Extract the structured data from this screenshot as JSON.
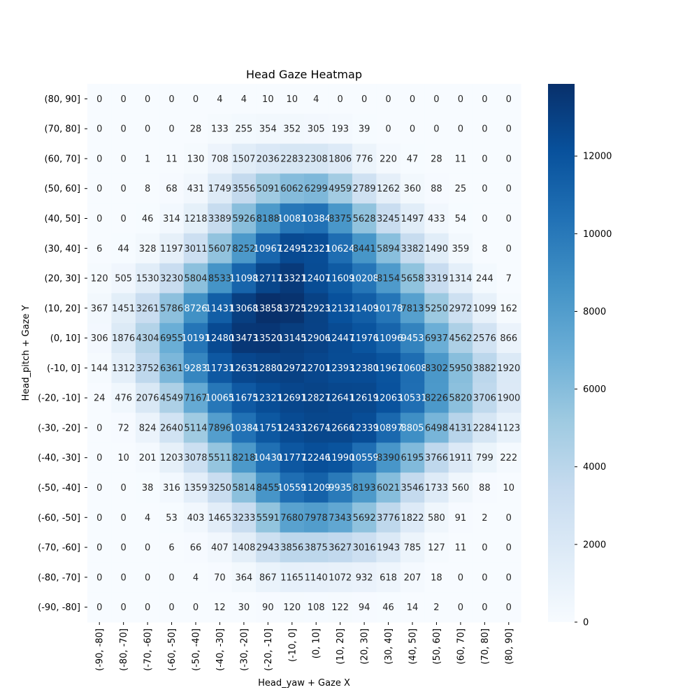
{
  "chart_data": {
    "type": "heatmap",
    "title": "Head Gaze Heatmap",
    "xlabel": "Head_yaw + Gaze X",
    "ylabel": "Head_pitch + Gaze Y",
    "x_categories": [
      "(-90, -80]",
      "(-80, -70]",
      "(-70, -60]",
      "(-60, -50]",
      "(-50, -40]",
      "(-40, -30]",
      "(-30, -20]",
      "(-20, -10]",
      "(-10, 0]",
      "(0, 10]",
      "(10, 20]",
      "(20, 30]",
      "(30, 40]",
      "(40, 50]",
      "(50, 60]",
      "(60, 70]",
      "(70, 80]",
      "(80, 90]"
    ],
    "y_categories": [
      "(80, 90]",
      "(70, 80]",
      "(60, 70]",
      "(50, 60]",
      "(40, 50]",
      "(30, 40]",
      "(20, 30]",
      "(10, 20]",
      "(0, 10]",
      "(-10, 0]",
      "(-20, -10]",
      "(-30, -20]",
      "(-40, -30]",
      "(-50, -40]",
      "(-60, -50]",
      "(-70, -60]",
      "(-80, -70]",
      "(-90, -80]"
    ],
    "values": [
      [
        0,
        0,
        0,
        0,
        0,
        4,
        4,
        10,
        10,
        4,
        0,
        0,
        0,
        0,
        0,
        0,
        0,
        0
      ],
      [
        0,
        0,
        0,
        0,
        28,
        133,
        255,
        354,
        352,
        305,
        193,
        39,
        0,
        0,
        0,
        0,
        0,
        0
      ],
      [
        0,
        0,
        1,
        11,
        130,
        708,
        1507,
        2036,
        2283,
        2308,
        1806,
        776,
        220,
        47,
        28,
        11,
        0,
        0
      ],
      [
        0,
        0,
        8,
        68,
        431,
        1749,
        3556,
        5091,
        6062,
        6299,
        4959,
        2789,
        1262,
        360,
        88,
        25,
        0,
        0
      ],
      [
        0,
        0,
        46,
        314,
        1218,
        3389,
        5926,
        8188,
        10081,
        10384,
        8375,
        5628,
        3245,
        1497,
        433,
        54,
        0,
        0
      ],
      [
        6,
        44,
        328,
        1197,
        3011,
        5607,
        8252,
        10967,
        12495,
        12321,
        10624,
        8441,
        5894,
        3382,
        1490,
        359,
        8,
        0
      ],
      [
        120,
        505,
        1530,
        3230,
        5804,
        8533,
        11098,
        12717,
        13321,
        12407,
        11609,
        10208,
        8154,
        5658,
        3319,
        1314,
        244,
        7
      ],
      [
        367,
        1451,
        3261,
        5786,
        8726,
        11431,
        13068,
        13858,
        13725,
        12923,
        12132,
        11409,
        10178,
        7813,
        5250,
        2972,
        1099,
        162
      ],
      [
        306,
        1876,
        4304,
        6955,
        10191,
        12480,
        13473,
        13520,
        13145,
        12906,
        12447,
        11976,
        11096,
        9453,
        6937,
        4562,
        2576,
        866
      ],
      [
        144,
        1312,
        3752,
        6361,
        9283,
        11731,
        12635,
        12880,
        12972,
        12701,
        12393,
        12380,
        11967,
        10608,
        8302,
        5950,
        3882,
        1920
      ],
      [
        24,
        476,
        2076,
        4549,
        7167,
        10065,
        11675,
        12321,
        12691,
        12827,
        12641,
        12619,
        12063,
        10531,
        8226,
        5820,
        3706,
        1900
      ],
      [
        0,
        72,
        824,
        2640,
        5114,
        7896,
        10384,
        11751,
        12433,
        12674,
        12666,
        12339,
        10897,
        8805,
        6498,
        4131,
        2284,
        1123
      ],
      [
        0,
        10,
        201,
        1203,
        3078,
        5511,
        8218,
        10430,
        11777,
        12246,
        11990,
        10559,
        8390,
        6195,
        3766,
        1911,
        799,
        222
      ],
      [
        0,
        0,
        38,
        316,
        1359,
        3250,
        5814,
        8455,
        10559,
        11209,
        9935,
        8193,
        6021,
        3546,
        1733,
        560,
        88,
        10
      ],
      [
        0,
        0,
        4,
        53,
        403,
        1465,
        3233,
        5591,
        7680,
        7978,
        7343,
        5692,
        3776,
        1822,
        580,
        91,
        2,
        0
      ],
      [
        0,
        0,
        0,
        6,
        66,
        407,
        1408,
        2943,
        3856,
        3875,
        3627,
        3016,
        1943,
        785,
        127,
        11,
        0,
        0
      ],
      [
        0,
        0,
        0,
        0,
        4,
        70,
        364,
        867,
        1165,
        1140,
        1072,
        932,
        618,
        207,
        18,
        0,
        0,
        0
      ],
      [
        0,
        0,
        0,
        0,
        0,
        12,
        30,
        90,
        120,
        108,
        122,
        94,
        46,
        14,
        2,
        0,
        0,
        0
      ]
    ],
    "colormap": "Blues",
    "vmin": 0,
    "vmax": 13858,
    "colorbar_ticks": [
      0,
      2000,
      4000,
      6000,
      8000,
      10000,
      12000
    ],
    "grid": false
  }
}
